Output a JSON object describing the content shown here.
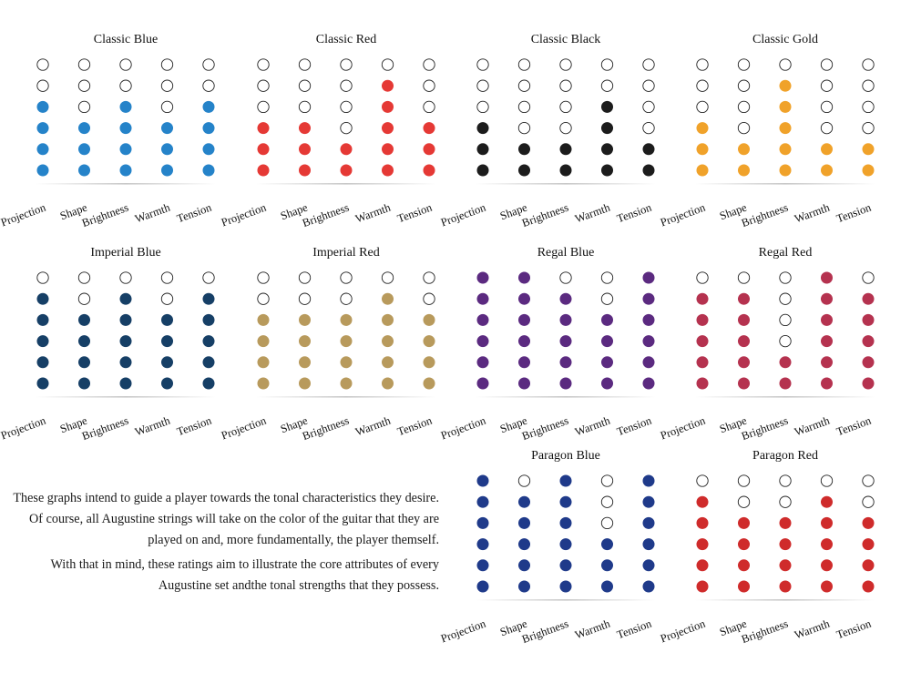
{
  "chart_data": [
    {
      "type": "dot-rating",
      "title": "Classic Blue",
      "color": "#2583c9",
      "max": 6,
      "categories": [
        "Projection",
        "Shape",
        "Brightness",
        "Warmth",
        "Tension"
      ],
      "values": [
        4,
        3,
        4,
        3,
        4
      ]
    },
    {
      "type": "dot-rating",
      "title": "Classic Red",
      "color": "#e53935",
      "max": 6,
      "categories": [
        "Projection",
        "Shape",
        "Brightness",
        "Warmth",
        "Tension"
      ],
      "values": [
        3,
        3,
        2,
        5,
        3
      ]
    },
    {
      "type": "dot-rating",
      "title": "Classic Black",
      "color": "#1c1c1c",
      "max": 6,
      "categories": [
        "Projection",
        "Shape",
        "Brightness",
        "Warmth",
        "Tension"
      ],
      "values": [
        3,
        2,
        2,
        4,
        2
      ]
    },
    {
      "type": "dot-rating",
      "title": "Classic Gold",
      "color": "#f0a22a",
      "max": 6,
      "categories": [
        "Projection",
        "Shape",
        "Brightness",
        "Warmth",
        "Tension"
      ],
      "values": [
        3,
        2,
        5,
        2,
        2
      ]
    },
    {
      "type": "dot-rating",
      "title": "Imperial Blue",
      "color": "#163f66",
      "max": 6,
      "categories": [
        "Projection",
        "Shape",
        "Brightness",
        "Warmth",
        "Tension"
      ],
      "values": [
        5,
        4,
        5,
        4,
        5
      ]
    },
    {
      "type": "dot-rating",
      "title": "Imperial Red",
      "color": "#b89a5c",
      "max": 6,
      "categories": [
        "Projection",
        "Shape",
        "Brightness",
        "Warmth",
        "Tension"
      ],
      "values": [
        4,
        4,
        4,
        5,
        4
      ]
    },
    {
      "type": "dot-rating",
      "title": "Regal Blue",
      "color": "#5b2a80",
      "max": 6,
      "categories": [
        "Projection",
        "Shape",
        "Brightness",
        "Warmth",
        "Tension"
      ],
      "values": [
        6,
        6,
        5,
        4,
        6
      ]
    },
    {
      "type": "dot-rating",
      "title": "Regal Red",
      "color": "#b5324f",
      "max": 6,
      "categories": [
        "Projection",
        "Shape",
        "Brightness",
        "Warmth",
        "Tension"
      ],
      "values": [
        5,
        5,
        2,
        6,
        5
      ]
    },
    {
      "type": "dot-rating",
      "title": "Paragon Blue",
      "color": "#1f3a8a",
      "max": 6,
      "categories": [
        "Projection",
        "Shape",
        "Brightness",
        "Warmth",
        "Tension"
      ],
      "values": [
        6,
        5,
        6,
        3,
        6
      ]
    },
    {
      "type": "dot-rating",
      "title": "Paragon Red",
      "color": "#cf2b2b",
      "max": 6,
      "categories": [
        "Projection",
        "Shape",
        "Brightness",
        "Warmth",
        "Tension"
      ],
      "values": [
        5,
        4,
        4,
        5,
        4
      ]
    }
  ],
  "description": {
    "paragraph1": "These graphs intend to guide a player towards the tonal characteristics they desire. Of course, all Augustine strings will take on the color of the guitar that they are played on and, more fundamentally, the player themself.",
    "paragraph2": "With that in mind, these ratings aim to illustrate the core attributes of every Augustine set andthe tonal strengths that they possess."
  }
}
